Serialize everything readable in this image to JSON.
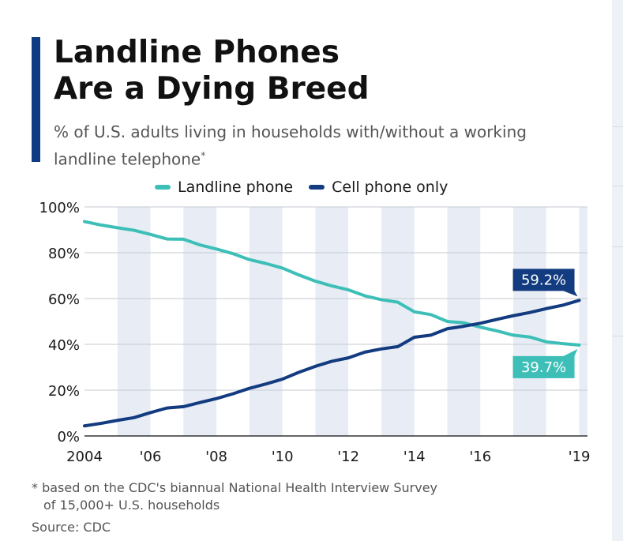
{
  "title_lines": [
    "Landline Phones",
    "Are a Dying Breed"
  ],
  "subtitle": {
    "text": "% of U.S. adults living in households with/without a working landline telephone",
    "marker": "*"
  },
  "footnote": {
    "line1": "* based on the CDC's biannual National Health Interview Survey",
    "line2": "of 15,000+ U.S. households"
  },
  "source": "Source: CDC",
  "colors": {
    "landline": "#3dbfb8",
    "cell": "#133b80",
    "accent": "#0f3b82",
    "band": "#e8edf5"
  },
  "chart_data": {
    "type": "line",
    "xlim": [
      2004,
      2019.25
    ],
    "ylim": [
      0,
      100
    ],
    "y_ticks": [
      0,
      20,
      40,
      60,
      80,
      100
    ],
    "y_tick_labels": [
      "0%",
      "20%",
      "40%",
      "60%",
      "80%",
      "100%"
    ],
    "x_ticks": [
      2004,
      2006,
      2008,
      2010,
      2012,
      2014,
      2016,
      2019
    ],
    "x_tick_labels": [
      "2004",
      "'06",
      "'08",
      "'10",
      "'12",
      "'14",
      "'16",
      "'19"
    ],
    "grid": true,
    "legend_position": "top",
    "x": [
      2004.0,
      2004.5,
      2005.0,
      2005.5,
      2006.0,
      2006.5,
      2007.0,
      2007.5,
      2008.0,
      2008.5,
      2009.0,
      2009.5,
      2010.0,
      2010.5,
      2011.0,
      2011.5,
      2012.0,
      2012.5,
      2013.0,
      2013.5,
      2014.0,
      2014.5,
      2015.0,
      2015.5,
      2016.0,
      2016.5,
      2017.0,
      2017.5,
      2018.0,
      2018.5,
      2019.0
    ],
    "series": [
      {
        "name": "Landline phone",
        "color": "#3dbfb8",
        "values": [
          93.6,
          92.1,
          90.9,
          89.8,
          88.0,
          86.0,
          85.9,
          83.4,
          81.6,
          79.6,
          77.0,
          75.3,
          73.3,
          70.3,
          67.6,
          65.5,
          63.8,
          61.2,
          59.5,
          58.4,
          54.2,
          53.0,
          50.0,
          49.4,
          47.5,
          45.9,
          44.0,
          43.2,
          41.1,
          40.3,
          39.7
        ]
      },
      {
        "name": "Cell phone only",
        "color": "#133b80",
        "values": [
          4.4,
          5.5,
          6.8,
          8.0,
          10.2,
          12.2,
          12.8,
          14.6,
          16.3,
          18.4,
          20.8,
          22.7,
          24.8,
          27.8,
          30.4,
          32.6,
          34.1,
          36.6,
          38.0,
          39.0,
          43.1,
          44.0,
          46.8,
          47.9,
          49.2,
          50.9,
          52.5,
          53.9,
          55.6,
          57.1,
          59.2
        ]
      }
    ],
    "annotations": [
      {
        "text": "59.2%",
        "series": "Cell phone only"
      },
      {
        "text": "39.7%",
        "series": "Landline phone"
      }
    ]
  }
}
